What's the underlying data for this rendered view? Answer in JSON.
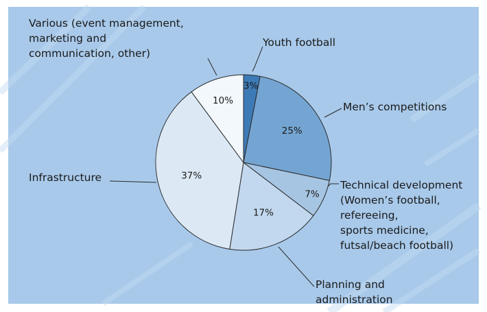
{
  "chart_data": {
    "type": "pie",
    "title": "",
    "start_angle_deg": 0,
    "direction": "clockwise",
    "slices": [
      {
        "label": "Youth football",
        "label_lines": [
          "Youth football"
        ],
        "value": 3,
        "value_label": "3%",
        "color": "#3d7bb6"
      },
      {
        "label": "Men’s competitions",
        "label_lines": [
          "Men’s competitions"
        ],
        "value": 25,
        "value_label": "25%",
        "color": "#74a5d2"
      },
      {
        "label": "Technical development (Women’s football, refereeing, sports medicine, futsal/beach football)",
        "label_lines": [
          "Technical development",
          "(Women’s football,",
          "refereeing,",
          "sports medicine,",
          "futsal/beach football)"
        ],
        "value": 7,
        "value_label": "7%",
        "color": "#a6c5e3"
      },
      {
        "label": "Planning and administration",
        "label_lines": [
          "Planning and",
          "administration"
        ],
        "value": 17,
        "value_label": "17%",
        "color": "#c2d8ee"
      },
      {
        "label": "Infrastructure",
        "label_lines": [
          "Infrastructure"
        ],
        "value": 37,
        "value_label": "37%",
        "color": "#dce9f5"
      },
      {
        "label": "Various (event management, marketing and communication, other)",
        "label_lines": [
          "Various (event management,",
          "marketing and",
          "communication, other)"
        ],
        "value": 10,
        "value_label": "10%",
        "color": "#f3f8fd"
      }
    ]
  },
  "style": {
    "background": "#a8c9ea",
    "stripe_color": "#c3dbf2",
    "frame_color": "#ffffff",
    "stroke_color": "#2a2a2a"
  }
}
